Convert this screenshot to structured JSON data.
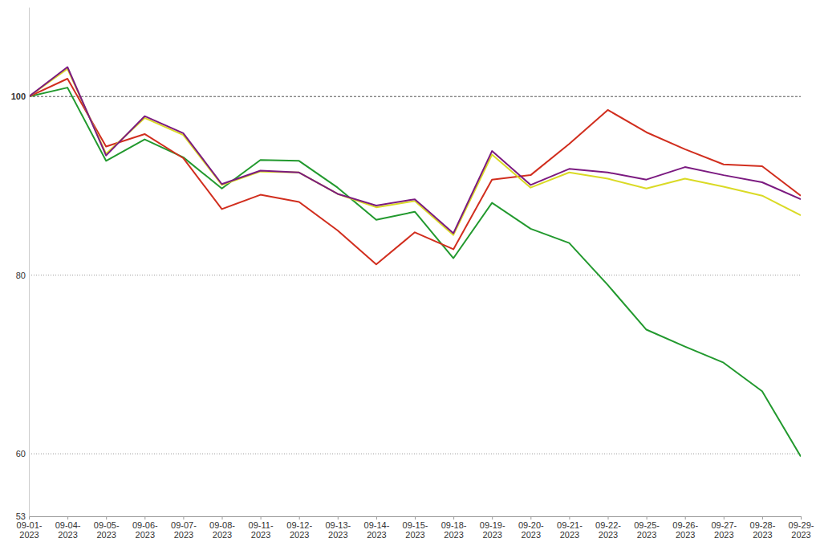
{
  "chart_data": {
    "type": "line",
    "categories": [
      "09-01-2023",
      "09-04-2023",
      "09-05-2023",
      "09-06-2023",
      "09-07-2023",
      "09-08-2023",
      "09-11-2023",
      "09-12-2023",
      "09-13-2023",
      "09-14-2023",
      "09-15-2023",
      "09-18-2023",
      "09-19-2023",
      "09-20-2023",
      "09-21-2023",
      "09-22-2023",
      "09-25-2023",
      "09-26-2023",
      "09-27-2023",
      "09-28-2023",
      "09-29-2023"
    ],
    "series": [
      {
        "color": "#22992e",
        "values": [
          100,
          101.0,
          92.8,
          95.2,
          93.2,
          89.7,
          92.9,
          92.8,
          89.8,
          86.2,
          87.1,
          81.9,
          88.1,
          85.2,
          83.6,
          78.9,
          73.9,
          72.0,
          70.2,
          67.0,
          59.7
        ]
      },
      {
        "color": "#d12e1e",
        "values": [
          100,
          102.0,
          94.4,
          95.8,
          93.1,
          87.4,
          89.0,
          88.2,
          85.0,
          81.2,
          84.8,
          82.9,
          90.7,
          91.2,
          94.7,
          98.5,
          96.0,
          94.1,
          92.4,
          92.2,
          88.9
        ]
      },
      {
        "color": "#dada25",
        "values": [
          100,
          103.1,
          93.6,
          97.6,
          95.7,
          90.1,
          91.6,
          91.5,
          89.1,
          87.6,
          88.3,
          84.5,
          93.5,
          89.8,
          91.5,
          90.8,
          89.7,
          90.8,
          89.9,
          88.9,
          86.7
        ]
      },
      {
        "color": "#7b1a80",
        "values": [
          100,
          103.3,
          93.4,
          97.8,
          95.9,
          90.2,
          91.7,
          91.5,
          89.1,
          87.8,
          88.5,
          84.7,
          93.9,
          90.1,
          91.9,
          91.5,
          90.7,
          92.1,
          91.2,
          90.4,
          88.5
        ]
      }
    ],
    "ylim": [
      53,
      110
    ],
    "yticks": [
      53,
      60,
      80,
      100
    ],
    "grid": true
  }
}
